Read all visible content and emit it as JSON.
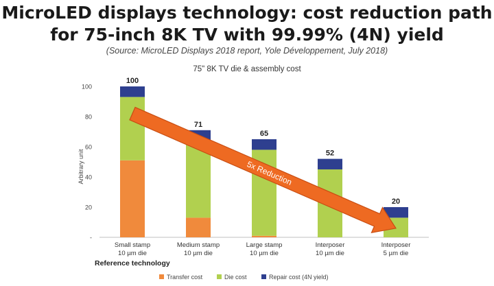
{
  "header": {
    "title_line1": "MicroLED displays technology: cost reduction path",
    "title_line2": "for 75-inch 8K TV with 99.99% (4N) yield",
    "source": "(Source: MicroLED Displays 2018 report, Yole Développement, July 2018)"
  },
  "colors": {
    "transfer": "#f08a3c",
    "die": "#b1d04f",
    "repair": "#2e3f8f",
    "arrow": "#ee6a22",
    "arrow_edge": "#c84d12"
  },
  "chart_data": {
    "type": "bar",
    "stacked": true,
    "title": "75\" 8K TV die & assembly cost",
    "xlabel": "Reference technology",
    "ylabel": "Arbitrary unit",
    "ylim": [
      0,
      100
    ],
    "yticks": [
      "-",
      "20",
      "40",
      "60",
      "80",
      "100"
    ],
    "ytick_values": [
      0,
      20,
      40,
      60,
      80,
      100
    ],
    "categories": [
      [
        "Small stamp",
        "10 µm die"
      ],
      [
        "Medium stamp",
        "10 µm die"
      ],
      [
        "Large stamp",
        "10 µm die"
      ],
      [
        "Interposer",
        "10 µm die"
      ],
      [
        "Interposer",
        "5 µm die"
      ]
    ],
    "series": [
      {
        "name": "Transfer cost",
        "key": "transfer",
        "values": [
          51,
          13,
          1,
          0,
          0
        ]
      },
      {
        "name": "Die cost",
        "key": "die",
        "values": [
          42,
          51,
          57,
          45,
          13
        ]
      },
      {
        "name": "Repair cost (4N yield)",
        "key": "repair",
        "values": [
          7,
          7,
          7,
          7,
          7
        ]
      }
    ],
    "totals": [
      100,
      71,
      65,
      52,
      20
    ],
    "total_labels": [
      "100",
      "71",
      "65",
      "52",
      "20"
    ],
    "annotation": {
      "text": "5x Reduction",
      "from_category": 0,
      "from_value": 82,
      "to_category": 4,
      "to_value": 6
    },
    "legend_position": "bottom"
  }
}
